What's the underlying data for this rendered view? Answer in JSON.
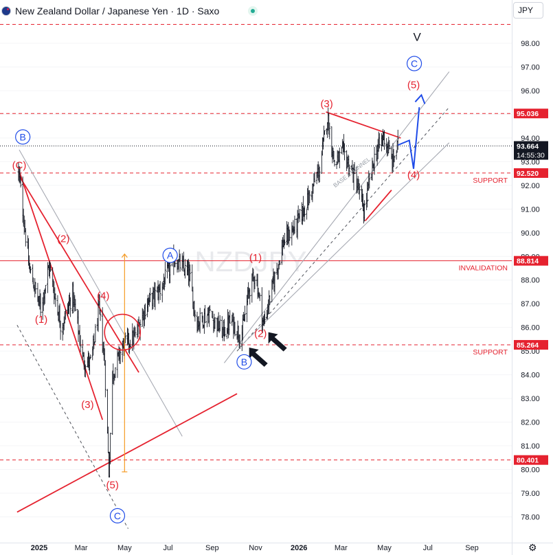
{
  "header": {
    "title": "New Zealand Dollar / Japanese Yen · 1D · Saxo",
    "currency": "JPY"
  },
  "watermark": "NZDJPY",
  "chart_data": {
    "type": "candlestick",
    "symbol": "NZDJPY",
    "timeframe": "1D",
    "ylim": [
      77.3,
      99.2
    ],
    "y_ticks": [
      78.0,
      79.0,
      80.0,
      81.0,
      82.0,
      83.0,
      84.0,
      85.0,
      86.0,
      87.0,
      88.0,
      89.0,
      90.0,
      91.0,
      92.0,
      93.0,
      94.0,
      95.0,
      96.0,
      97.0,
      98.0
    ],
    "x_ticks": [
      {
        "label": "2025",
        "date": "2025-01-01",
        "bold": true
      },
      {
        "label": "Mar",
        "date": "2025-03-01"
      },
      {
        "label": "May",
        "date": "2025-05-01"
      },
      {
        "label": "Jul",
        "date": "2025-07-01"
      },
      {
        "label": "Sep",
        "date": "2025-09-01"
      },
      {
        "label": "Nov",
        "date": "2025-11-01"
      },
      {
        "label": "2026",
        "date": "2026-01-01",
        "bold": true
      },
      {
        "label": "Mar",
        "date": "2026-03-01"
      },
      {
        "label": "May",
        "date": "2026-05-01"
      },
      {
        "label": "Jul",
        "date": "2026-07-01"
      },
      {
        "label": "Sep",
        "date": "2026-09-01"
      }
    ],
    "price_path": [
      [
        "2024-12-03",
        92.6
      ],
      [
        "2024-12-18",
        88.5
      ],
      [
        "2025-01-03",
        86.8
      ],
      [
        "2025-01-15",
        88.6
      ],
      [
        "2025-02-01",
        86.0
      ],
      [
        "2025-02-17",
        87.4
      ],
      [
        "2025-03-04",
        84.6
      ],
      [
        "2025-03-15",
        84.5
      ],
      [
        "2025-03-26",
        86.8
      ],
      [
        "2025-04-03",
        84.5
      ],
      [
        "2025-04-09",
        79.9
      ],
      [
        "2025-04-14",
        84.0
      ],
      [
        "2025-04-28",
        85.2
      ],
      [
        "2025-05-16",
        85.6
      ],
      [
        "2025-06-01",
        87.0
      ],
      [
        "2025-06-20",
        87.6
      ],
      [
        "2025-07-10",
        88.9
      ],
      [
        "2025-07-31",
        88.2
      ],
      [
        "2025-08-10",
        86.2
      ],
      [
        "2025-08-28",
        86.6
      ],
      [
        "2025-09-16",
        85.8
      ],
      [
        "2025-09-28",
        86.3
      ],
      [
        "2025-10-12",
        85.6
      ],
      [
        "2025-10-23",
        87.6
      ],
      [
        "2025-11-01",
        88.3
      ],
      [
        "2025-11-12",
        86.1
      ],
      [
        "2025-11-26",
        87.9
      ],
      [
        "2025-12-10",
        89.6
      ],
      [
        "2025-12-28",
        90.3
      ],
      [
        "2026-01-14",
        91.4
      ],
      [
        "2026-01-30",
        92.7
      ],
      [
        "2026-02-10",
        94.9
      ],
      [
        "2026-02-20",
        92.9
      ],
      [
        "2026-03-04",
        93.4
      ],
      [
        "2026-03-22",
        92.2
      ],
      [
        "2026-04-02",
        90.9
      ],
      [
        "2026-04-18",
        93.3
      ],
      [
        "2026-04-30",
        94.1
      ],
      [
        "2026-05-12",
        93.0
      ],
      [
        "2026-05-20",
        93.66
      ]
    ],
    "horizontal_lines": [
      {
        "price": 98.8,
        "style": "dashed",
        "color": "#e5222f",
        "label": ""
      },
      {
        "price": 95.036,
        "style": "dashed",
        "color": "#e5222f",
        "badge": "95.036",
        "label": ""
      },
      {
        "price": 93.664,
        "style": "dotted",
        "color": "#131722",
        "badge": "93.664",
        "sub_badge": "14:55:30"
      },
      {
        "price": 92.52,
        "style": "dashed",
        "color": "#e5222f",
        "badge": "92.520",
        "label": "SUPPORT"
      },
      {
        "price": 88.814,
        "style": "solid",
        "color": "#e5222f",
        "badge": "88.814",
        "label": "INVALIDATION"
      },
      {
        "price": 85.264,
        "style": "dashed",
        "color": "#e5222f",
        "badge": "85.264",
        "label": "SUPPORT"
      },
      {
        "price": 80.401,
        "style": "dashed",
        "color": "#e5222f",
        "badge": "80.401",
        "label": ""
      }
    ],
    "wave_labels": {
      "red": [
        {
          "text": "(C)",
          "date": "2024-12-04",
          "price": 92.7
        },
        {
          "text": "(1)",
          "date": "2025-01-04",
          "price": 86.2
        },
        {
          "text": "(2)",
          "date": "2025-02-04",
          "price": 89.6
        },
        {
          "text": "(3)",
          "date": "2025-03-10",
          "price": 82.6
        },
        {
          "text": "(4)",
          "date": "2025-04-01",
          "price": 87.2
        },
        {
          "text": "(5)",
          "date": "2025-04-14",
          "price": 79.2
        },
        {
          "text": "(1)",
          "date": "2025-11-01",
          "price": 88.8
        },
        {
          "text": "(2)",
          "date": "2025-11-08",
          "price": 85.6
        },
        {
          "text": "(3)",
          "date": "2026-02-09",
          "price": 95.3
        },
        {
          "text": "(4)",
          "date": "2026-06-11",
          "price": 92.3
        },
        {
          "text": "(5)",
          "date": "2026-06-11",
          "price": 96.1
        }
      ],
      "blue": [
        {
          "text": "B",
          "date": "2024-12-09",
          "price": 93.9
        },
        {
          "text": "C",
          "date": "2025-04-21",
          "price": 77.9
        },
        {
          "text": "A",
          "date": "2025-07-04",
          "price": 88.9
        },
        {
          "text": "B",
          "date": "2025-10-16",
          "price": 84.4
        },
        {
          "text": "C",
          "date": "2026-06-12",
          "price": 97.0
        }
      ],
      "black": [
        {
          "text": "V",
          "date": "2026-06-16",
          "price": 98.1
        }
      ]
    },
    "trendlines": [
      {
        "color": "#e5222f",
        "points": [
          [
            "2024-12-04",
            92.6
          ],
          [
            "2025-03-31",
            82.1
          ]
        ]
      },
      {
        "color": "#e5222f",
        "points": [
          [
            "2024-12-04",
            92.4
          ],
          [
            "2025-05-21",
            84.1
          ]
        ]
      },
      {
        "color": "#a6a9b2",
        "points": [
          [
            "2024-12-04",
            93.5
          ],
          [
            "2025-07-21",
            81.4
          ]
        ]
      },
      {
        "color": "#e5222f",
        "points": [
          [
            "2024-12-01",
            78.2
          ],
          [
            "2025-10-06",
            83.2
          ]
        ]
      },
      {
        "color": "#e5222f",
        "points": [
          [
            "2026-02-08",
            95.1
          ],
          [
            "2026-05-24",
            94.0
          ]
        ]
      },
      {
        "color": "#e5222f",
        "points": [
          [
            "2026-04-04",
            90.5
          ],
          [
            "2026-05-11",
            91.8
          ]
        ]
      },
      {
        "color": "#a6a9b2",
        "points": [
          [
            "2025-09-18",
            84.5
          ],
          [
            "2026-07-31",
            96.8
          ]
        ]
      },
      {
        "color": "#a6a9b2",
        "points": [
          [
            "2025-10-14",
            85.3
          ],
          [
            "2026-07-31",
            93.8
          ]
        ]
      }
    ],
    "dashed_guides": [
      {
        "color": "#131722",
        "points": [
          [
            "2024-12-01",
            86.1
          ],
          [
            "2025-05-06",
            77.5
          ]
        ]
      },
      {
        "color": "#131722",
        "points": [
          [
            "2025-10-06",
            85.0
          ],
          [
            "2026-07-31",
            95.3
          ]
        ]
      }
    ],
    "forecast_path": {
      "color": "#1e4be8",
      "points": [
        [
          "2026-05-20",
          93.7
        ],
        [
          "2026-06-05",
          93.9
        ],
        [
          "2026-06-11",
          92.7
        ],
        [
          "2026-06-19",
          95.3
        ]
      ],
      "arrow_to": [
        "2026-06-22",
        95.7
      ]
    },
    "measure": {
      "color": "#f59a23",
      "date": "2025-05-01",
      "from": 79.9,
      "to": 89.1
    },
    "circle": {
      "color": "#e5222f",
      "date": "2025-04-28",
      "price": 85.8
    },
    "arrows": [
      {
        "color": "#131722",
        "tip": [
          "2025-10-23",
          85.15
        ],
        "direction": "up-left"
      },
      {
        "color": "#131722",
        "tip": [
          "2025-11-19",
          85.8
        ],
        "direction": "up-left"
      }
    ],
    "annotation_text": {
      "text": "BASE CHANNEL",
      "color": "#9aa0a8",
      "date": "2026-02-21",
      "price": 91.9
    }
  }
}
